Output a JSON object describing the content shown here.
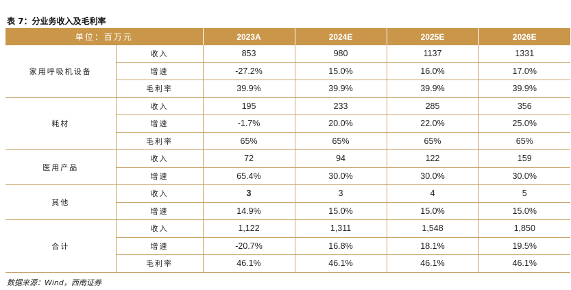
{
  "title": "表 7：分业务收入及毛利率",
  "header": [
    "单位：百万元",
    "2023A",
    "2024E",
    "2025E",
    "2026E"
  ],
  "groups": [
    {
      "name": "家用呼吸机设备",
      "rows": [
        {
          "metric": "收入",
          "values": [
            "853",
            "980",
            "1137",
            "1331"
          ]
        },
        {
          "metric": "增速",
          "values": [
            "-27.2%",
            "15.0%",
            "16.0%",
            "17.0%"
          ]
        },
        {
          "metric": "毛利率",
          "values": [
            "39.9%",
            "39.9%",
            "39.9%",
            "39.9%"
          ]
        }
      ]
    },
    {
      "name": "耗材",
      "rows": [
        {
          "metric": "收入",
          "values": [
            "195",
            "233",
            "285",
            "356"
          ]
        },
        {
          "metric": "增速",
          "values": [
            "-1.7%",
            "20.0%",
            "22.0%",
            "25.0%"
          ]
        },
        {
          "metric": "毛利率",
          "values": [
            "65%",
            "65%",
            "65%",
            "65%"
          ]
        }
      ]
    },
    {
      "name": "医用产品",
      "rows": [
        {
          "metric": "收入",
          "values": [
            "72",
            "94",
            "122",
            "159"
          ]
        },
        {
          "metric": "增速",
          "values": [
            "65.4%",
            "30.0%",
            "30.0%",
            "30.0%"
          ]
        }
      ]
    },
    {
      "name": "其他",
      "rows": [
        {
          "metric": "收入",
          "values": [
            "3",
            "3",
            "4",
            "5"
          ],
          "bold_first": true
        },
        {
          "metric": "增速",
          "values": [
            "14.9%",
            "15.0%",
            "15.0%",
            "15.0%"
          ]
        }
      ]
    },
    {
      "name": "合计",
      "rows": [
        {
          "metric": "收入",
          "values": [
            "1,122",
            "1,311",
            "1,548",
            "1,850"
          ]
        },
        {
          "metric": "增速",
          "values": [
            "-20.7%",
            "16.8%",
            "18.1%",
            "19.5%"
          ]
        },
        {
          "metric": "毛利率",
          "values": [
            "46.1%",
            "46.1%",
            "46.1%",
            "46.1%"
          ]
        }
      ]
    }
  ],
  "source": "数据来源：Wind，西南证券",
  "colors": {
    "header_bg": "#c9964a",
    "rule": "#c9a46a"
  }
}
